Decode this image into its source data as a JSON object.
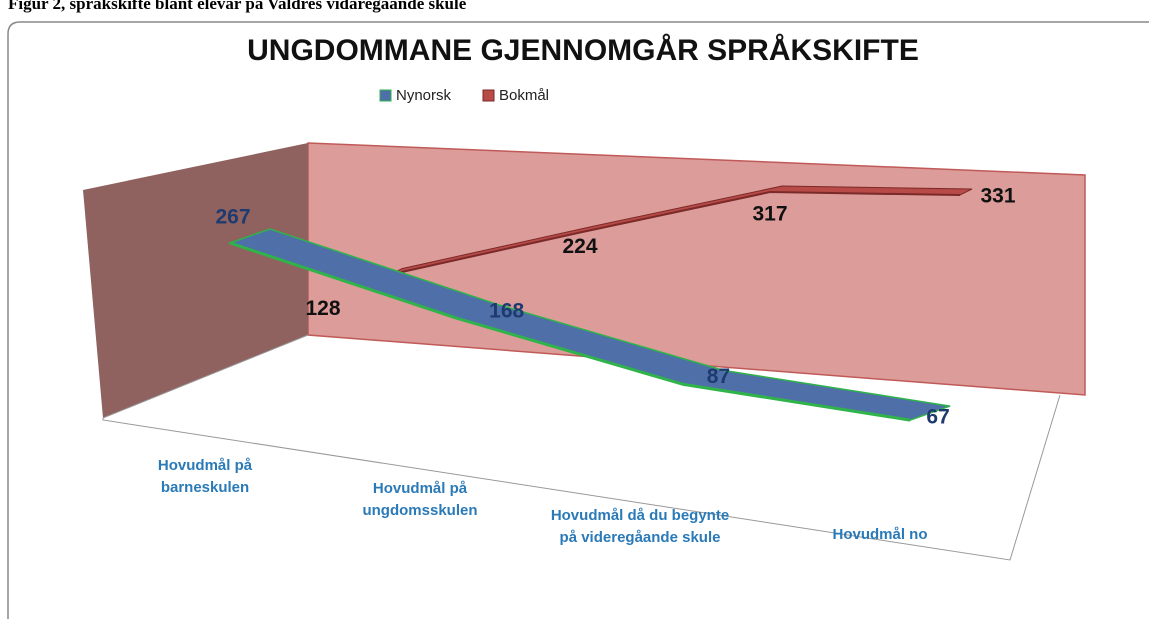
{
  "caption": "Figur 2, språkskifte blant elevar på Valdres vidaregåande skule",
  "chart_data": {
    "type": "line3d",
    "title": "UNGDOMMANE GJENNOMGÅR SPRÅKSKIFTE",
    "categories": [
      "Hovudmål på barneskulen",
      "Hovudmål på ungdomsskulen",
      "Hovudmål då du begynte på videregåande skule",
      "Hovudmål no"
    ],
    "series": [
      {
        "name": "Nynorsk",
        "color": "#4f6fa8",
        "values": [
          267,
          168,
          87,
          67
        ]
      },
      {
        "name": "Bokmål",
        "color": "#b84a48",
        "values": [
          128,
          224,
          317,
          331
        ]
      }
    ],
    "legend": "top"
  }
}
